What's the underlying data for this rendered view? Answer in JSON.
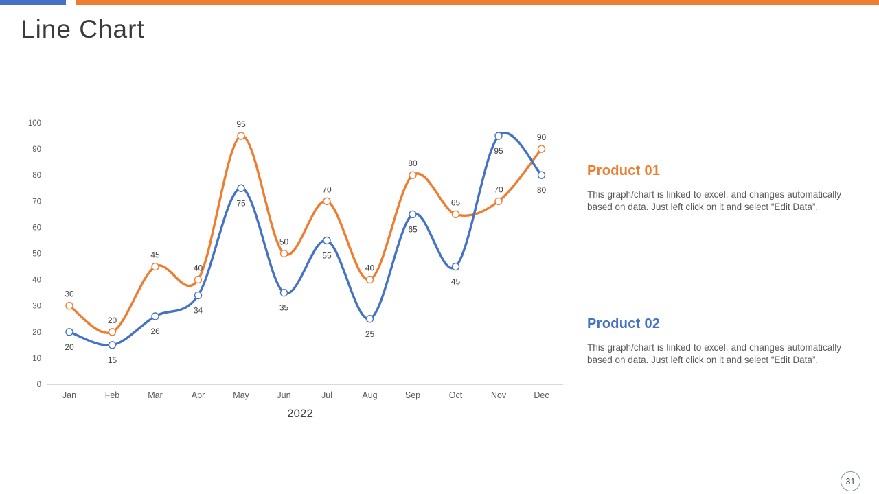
{
  "slide": {
    "title": "Line Chart",
    "page_number": "31"
  },
  "accent_colors": {
    "blue": "#4472C4",
    "orange": "#ED7D31",
    "axis_gray": "#D9D9D9",
    "text_gray": "#595959",
    "label_gray": "#404040"
  },
  "annotations": {
    "product01": {
      "title": "Product 01",
      "body": "This graph/chart is linked to excel, and changes automatically based on data. Just left click on it and select “Edit Data”."
    },
    "product02": {
      "title": "Product 02",
      "body": "This graph/chart is linked to excel, and changes automatically based on data. Just left click on it and select “Edit Data”."
    }
  },
  "chart_data": {
    "type": "line",
    "smooth": true,
    "grid": false,
    "legend": false,
    "markers": "open-circle",
    "categories": [
      "Jan",
      "Feb",
      "Mar",
      "Apr",
      "May",
      "Jun",
      "Jul",
      "Aug",
      "Sep",
      "Oct",
      "Nov",
      "Dec"
    ],
    "x_axis_title": "2022",
    "ylim": [
      0,
      100
    ],
    "y_tick_step": 10,
    "series": [
      {
        "name": "Product 01",
        "color": "#ED7D31",
        "label_position": "above",
        "values": [
          30,
          20,
          45,
          40,
          95,
          50,
          70,
          40,
          80,
          65,
          70,
          90
        ]
      },
      {
        "name": "Product 02",
        "color": "#4472C4",
        "label_position": "below",
        "values": [
          20,
          15,
          26,
          34,
          75,
          35,
          55,
          25,
          65,
          45,
          95,
          80
        ]
      }
    ]
  }
}
